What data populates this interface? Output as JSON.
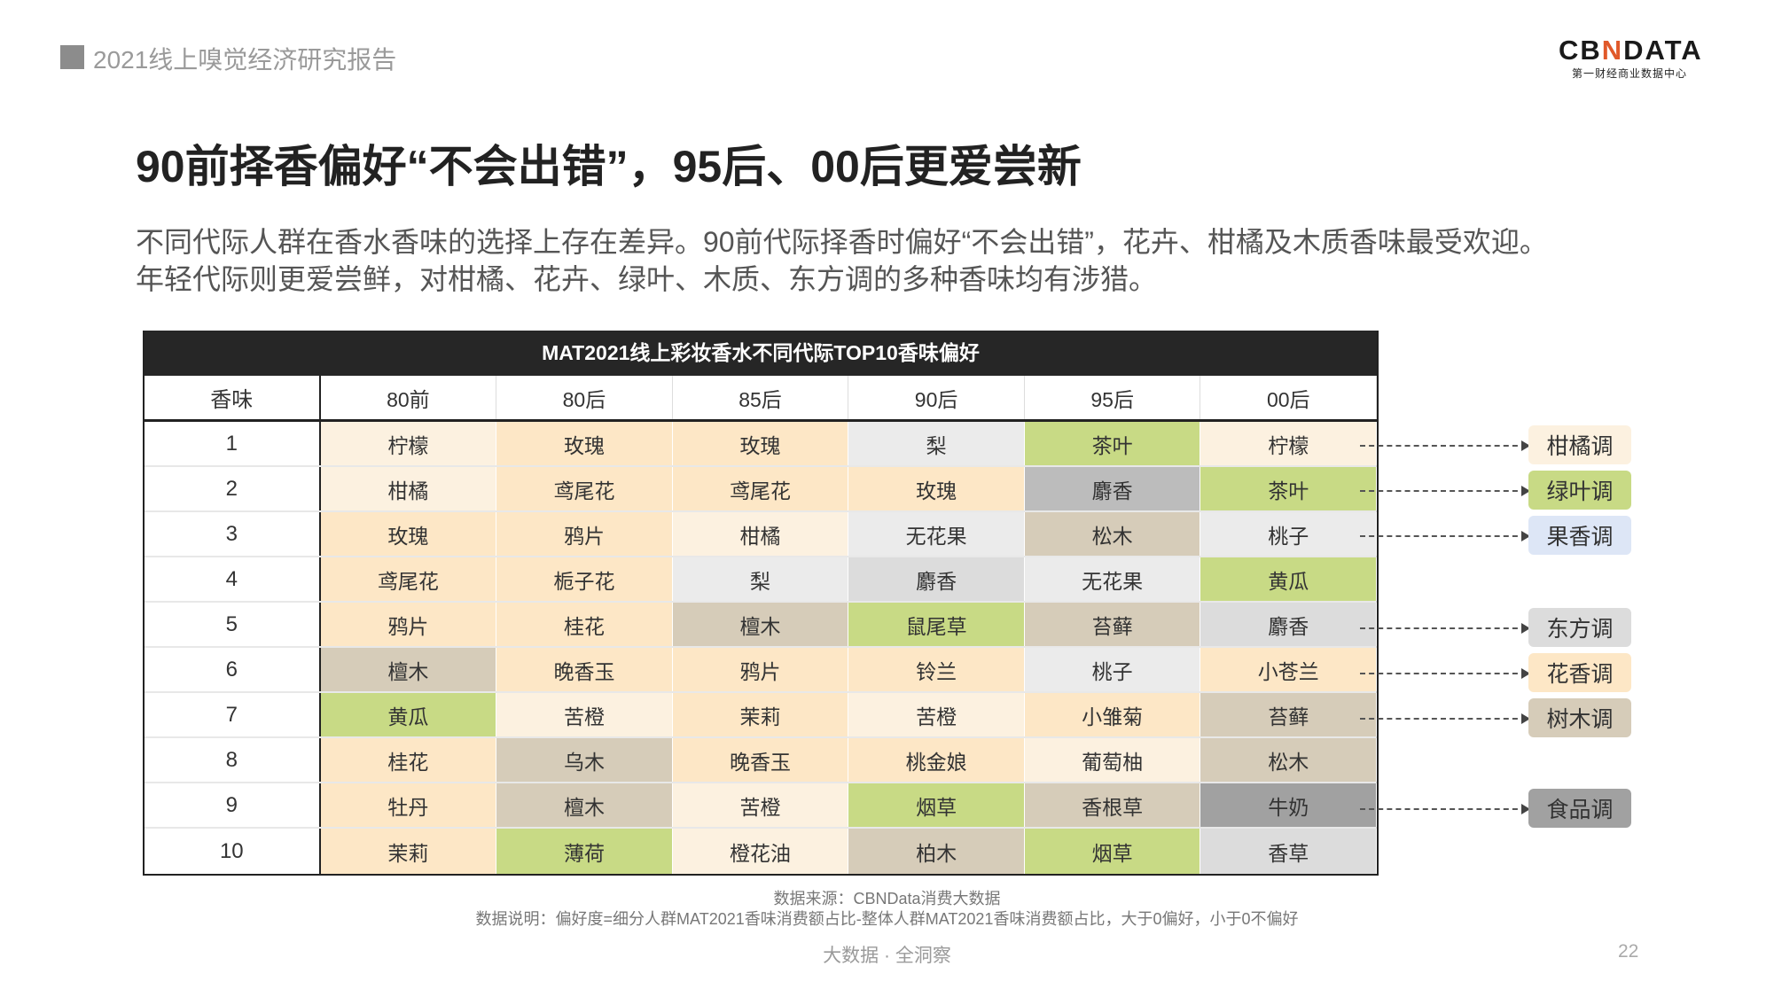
{
  "header": {
    "report_title": "2021线上嗅觉经济研究报告",
    "logo_text": "CBNDATA",
    "logo_sub": "第一财经商业数据中心"
  },
  "title": "90前择香偏好“不会出错”，95后、00后更爱尝新",
  "paragraph": [
    "不同代际人群在香水香味的选择上存在差异。90前代际择香时偏好“不会出错”，花卉、柑橘及木质香味最受欢迎。",
    "年轻代际则更爱尝鲜，对柑橘、花卉、绿叶、木质、东方调的多种香味均有涉猎。"
  ],
  "colors": {
    "citrus": "#fcf1e0",
    "floral": "#fde7c6",
    "green": "#c8da85",
    "fruit": "#ebebeb",
    "oriental": "#dcdcdc",
    "musk_dark": "#bcbcbc",
    "wood": "#d6ccb9",
    "food": "#a1a1a1",
    "fruit_tag": "#dde6f6"
  },
  "table": {
    "title": "MAT2021线上彩妆香水不同代际TOP10香味偏好",
    "headers": [
      "香味",
      "80前",
      "80后",
      "85后",
      "90后",
      "95后",
      "00后"
    ],
    "rows": [
      {
        "rank": "1",
        "cells": [
          [
            "柠檬",
            "citrus"
          ],
          [
            "玫瑰",
            "floral"
          ],
          [
            "玫瑰",
            "floral"
          ],
          [
            "梨",
            "fruit"
          ],
          [
            "茶叶",
            "green"
          ],
          [
            "柠檬",
            "citrus"
          ]
        ]
      },
      {
        "rank": "2",
        "cells": [
          [
            "柑橘",
            "citrus"
          ],
          [
            "鸢尾花",
            "floral"
          ],
          [
            "鸢尾花",
            "floral"
          ],
          [
            "玫瑰",
            "floral"
          ],
          [
            "麝香",
            "musk_dark"
          ],
          [
            "茶叶",
            "green"
          ]
        ]
      },
      {
        "rank": "3",
        "cells": [
          [
            "玫瑰",
            "floral"
          ],
          [
            "鸦片",
            "floral"
          ],
          [
            "柑橘",
            "citrus"
          ],
          [
            "无花果",
            "fruit"
          ],
          [
            "松木",
            "wood"
          ],
          [
            "桃子",
            "fruit"
          ]
        ]
      },
      {
        "rank": "4",
        "cells": [
          [
            "鸢尾花",
            "floral"
          ],
          [
            "栀子花",
            "floral"
          ],
          [
            "梨",
            "fruit"
          ],
          [
            "麝香",
            "oriental"
          ],
          [
            "无花果",
            "fruit"
          ],
          [
            "黄瓜",
            "green"
          ]
        ]
      },
      {
        "rank": "5",
        "cells": [
          [
            "鸦片",
            "floral"
          ],
          [
            "桂花",
            "floral"
          ],
          [
            "檀木",
            "wood"
          ],
          [
            "鼠尾草",
            "green"
          ],
          [
            "苔藓",
            "wood"
          ],
          [
            "麝香",
            "oriental"
          ]
        ]
      },
      {
        "rank": "6",
        "cells": [
          [
            "檀木",
            "wood"
          ],
          [
            "晚香玉",
            "floral"
          ],
          [
            "鸦片",
            "floral"
          ],
          [
            "铃兰",
            "floral"
          ],
          [
            "桃子",
            "fruit"
          ],
          [
            "小苍兰",
            "floral"
          ]
        ]
      },
      {
        "rank": "7",
        "cells": [
          [
            "黄瓜",
            "green"
          ],
          [
            "苦橙",
            "citrus"
          ],
          [
            "茉莉",
            "floral"
          ],
          [
            "苦橙",
            "citrus"
          ],
          [
            "小雏菊",
            "floral"
          ],
          [
            "苔藓",
            "wood"
          ]
        ]
      },
      {
        "rank": "8",
        "cells": [
          [
            "桂花",
            "floral"
          ],
          [
            "乌木",
            "wood"
          ],
          [
            "晚香玉",
            "floral"
          ],
          [
            "桃金娘",
            "floral"
          ],
          [
            "葡萄柚",
            "citrus"
          ],
          [
            "松木",
            "wood"
          ]
        ]
      },
      {
        "rank": "9",
        "cells": [
          [
            "牡丹",
            "floral"
          ],
          [
            "檀木",
            "wood"
          ],
          [
            "苦橙",
            "citrus"
          ],
          [
            "烟草",
            "green"
          ],
          [
            "香根草",
            "wood"
          ],
          [
            "牛奶",
            "food"
          ]
        ]
      },
      {
        "rank": "10",
        "cells": [
          [
            "茉莉",
            "floral"
          ],
          [
            "薄荷",
            "green"
          ],
          [
            "橙花油",
            "citrus"
          ],
          [
            "柏木",
            "wood"
          ],
          [
            "烟草",
            "green"
          ],
          [
            "香草",
            "oriental"
          ]
        ]
      }
    ]
  },
  "legend": [
    {
      "label": "柑橘调",
      "family": "citrus",
      "row": 1
    },
    {
      "label": "绿叶调",
      "family": "green",
      "row": 2
    },
    {
      "label": "果香调",
      "family": "fruit_tag",
      "row": 3
    },
    {
      "label": "东方调",
      "family": "oriental",
      "row": 5
    },
    {
      "label": "花香调",
      "family": "floral",
      "row": 6
    },
    {
      "label": "树木调",
      "family": "wood",
      "row": 7
    },
    {
      "label": "食品调",
      "family": "food",
      "row": 9
    }
  ],
  "notes": {
    "source": "数据来源：CBNData消费大数据",
    "explain": "数据说明：偏好度=细分人群MAT2021香味消费额占比-整体人群MAT2021香味消费额占比，大于0偏好，小于0不偏好"
  },
  "footer": {
    "slogan": "大数据 · 全洞察",
    "page": "22"
  }
}
